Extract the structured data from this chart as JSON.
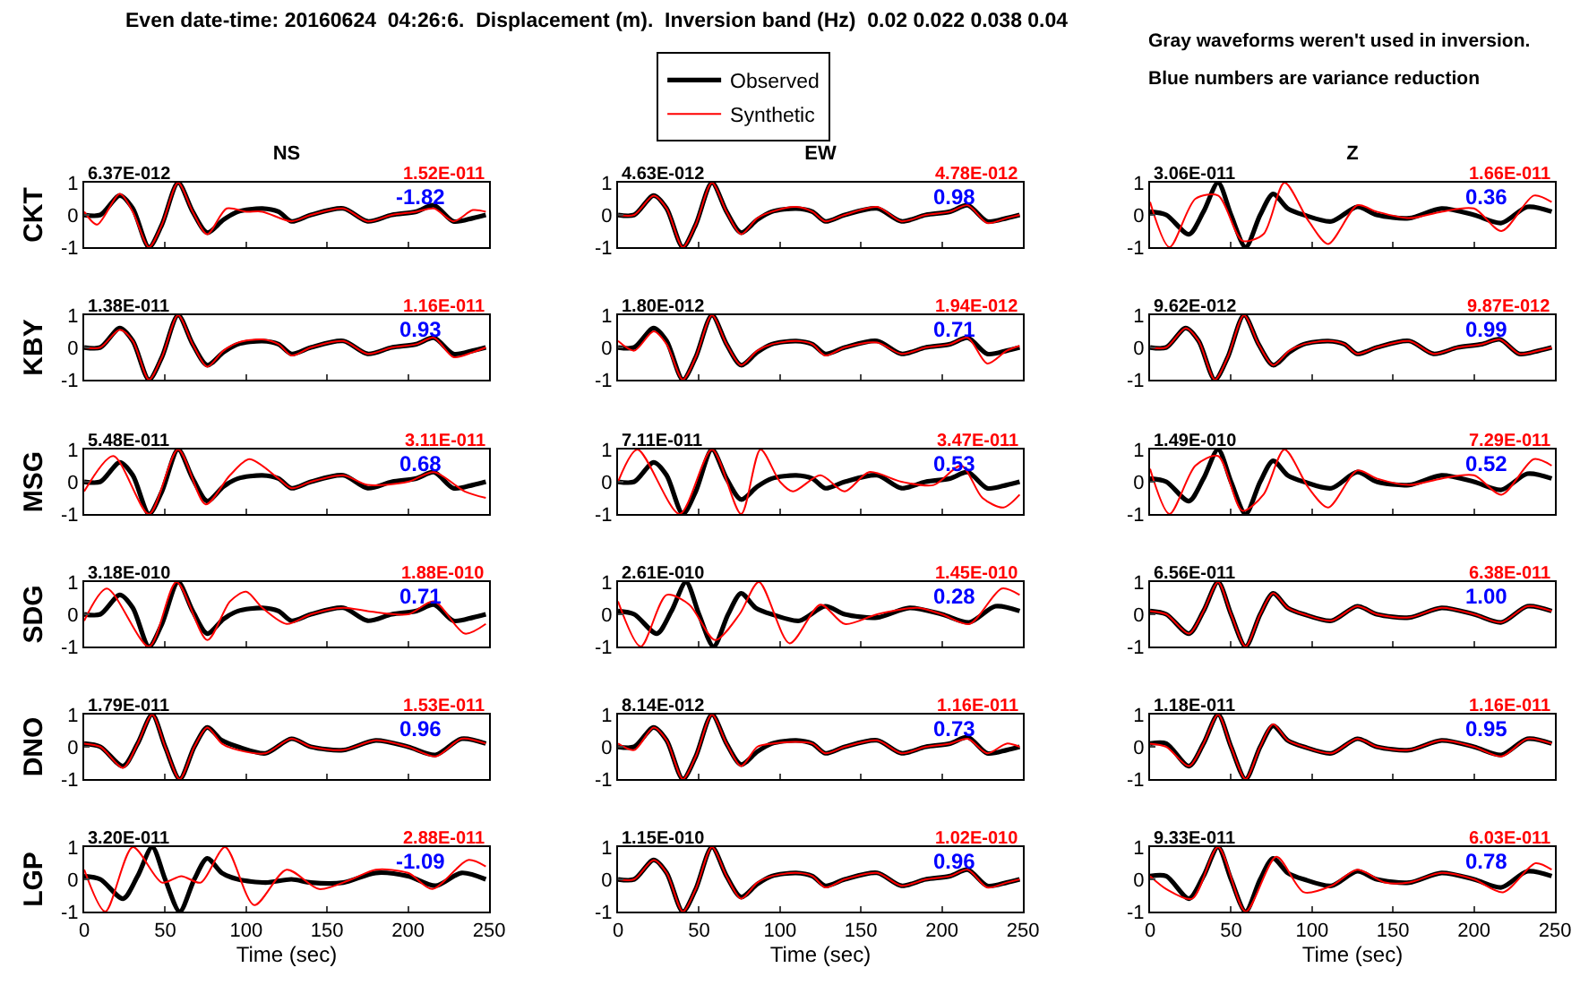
{
  "chart_data": [
    {
      "type": "other",
      "title": "Even date-time: 20160624  04:26:6.  Displacement (m).  Inversion band (Hz)  0.02 0.022 0.038 0.04",
      "annotations": [
        "Gray waveforms weren't used in inversion.",
        "Blue numbers are variance reduction"
      ]
    },
    {
      "type": "line",
      "title": "NS",
      "ylabel": "CKT",
      "xlim": [
        0,
        250
      ],
      "xticks": [
        0,
        50,
        100,
        150,
        200,
        250
      ],
      "ylim": [
        -1,
        1
      ],
      "yticks": [
        -1,
        0,
        1
      ],
      "tick_labels": "y",
      "annotations": [
        "6.37E-012",
        "1.52E-011",
        "-1.82"
      ],
      "series": [
        {
          "color": "#000000",
          "x": [
            0,
            10,
            22,
            30,
            40,
            48,
            58,
            67,
            76,
            86,
            95,
            110,
            120,
            128,
            140,
            160,
            175,
            190,
            205,
            216,
            228,
            240,
            248
          ],
          "values": [
            0,
            0,
            0.6,
            0.2,
            -1,
            -0.3,
            1,
            0.1,
            -0.55,
            -0.15,
            0.1,
            0.2,
            0.1,
            -0.2,
            0,
            0.2,
            -0.2,
            0,
            0.1,
            0.3,
            -0.2,
            -0.1,
            0
          ]
        },
        {
          "color": "#ff0000",
          "x": [
            0,
            8,
            22,
            30,
            40,
            48,
            58,
            67,
            76,
            88,
            100,
            110,
            128,
            140,
            160,
            175,
            190,
            205,
            216,
            228,
            240,
            248
          ],
          "values": [
            0.1,
            -0.3,
            0.65,
            0.1,
            -1,
            -0.3,
            1,
            0.1,
            -0.6,
            0.2,
            0.1,
            0.1,
            -0.2,
            0,
            0.2,
            -0.2,
            0,
            0.1,
            0.2,
            -0.2,
            0.15,
            0.1
          ]
        }
      ]
    },
    {
      "type": "line",
      "title": "EW",
      "legend": "top",
      "xlim": [
        0,
        250
      ],
      "xticks": [
        0,
        50,
        100,
        150,
        200,
        250
      ],
      "ylim": [
        -1,
        1
      ],
      "yticks": [
        -1,
        0,
        1
      ],
      "tick_labels": "y",
      "annotations": [
        "4.63E-012",
        "4.78E-012",
        "0.98"
      ],
      "series": [
        {
          "name": "Observed",
          "color": "#000000",
          "x": [
            0,
            10,
            22,
            30,
            40,
            48,
            58,
            67,
            76,
            86,
            95,
            110,
            120,
            128,
            140,
            160,
            175,
            190,
            205,
            216,
            228,
            240,
            248
          ],
          "values": [
            0,
            0,
            0.6,
            0.2,
            -1,
            -0.3,
            1,
            0.1,
            -0.55,
            -0.15,
            0.1,
            0.2,
            0.1,
            -0.2,
            0,
            0.2,
            -0.2,
            0,
            0.1,
            0.3,
            -0.2,
            -0.1,
            0
          ]
        },
        {
          "name": "Synthetic",
          "color": "#ff0000",
          "x": [
            0,
            10,
            22,
            30,
            40,
            48,
            58,
            67,
            76,
            86,
            95,
            110,
            120,
            128,
            140,
            160,
            175,
            190,
            205,
            216,
            228,
            240,
            248
          ],
          "values": [
            0,
            0,
            0.6,
            0.2,
            -1,
            -0.3,
            1,
            0.1,
            -0.6,
            -0.1,
            0.1,
            0.25,
            0.1,
            -0.2,
            0,
            0.25,
            -0.2,
            0,
            0.1,
            0.3,
            -0.25,
            -0.1,
            0
          ]
        }
      ]
    },
    {
      "type": "line",
      "title": "Z",
      "xlim": [
        0,
        250
      ],
      "xticks": [
        0,
        50,
        100,
        150,
        200,
        250
      ],
      "ylim": [
        -1,
        1
      ],
      "yticks": [
        -1,
        0,
        1
      ],
      "tick_labels": "y",
      "annotations": [
        "3.06E-011",
        "1.66E-011",
        "0.36"
      ],
      "series": [
        {
          "color": "#000000",
          "x": [
            0,
            10,
            24,
            33,
            42,
            50,
            59,
            68,
            76,
            85,
            95,
            112,
            128,
            140,
            160,
            180,
            200,
            217,
            233,
            248
          ],
          "values": [
            0.1,
            0,
            -0.6,
            0.1,
            1,
            0,
            -1,
            0,
            0.65,
            0.2,
            0,
            -0.2,
            0.25,
            0,
            -0.1,
            0.2,
            0,
            -0.25,
            0.25,
            0.1
          ]
        },
        {
          "color": "#ff0000",
          "x": [
            0,
            12,
            28,
            42,
            57,
            70,
            83,
            98,
            110,
            128,
            140,
            160,
            180,
            200,
            217,
            237,
            248
          ],
          "values": [
            0.4,
            -1,
            0.5,
            0.6,
            -0.8,
            -0.6,
            1,
            -0.2,
            -0.9,
            0.3,
            0.1,
            -0.1,
            0.1,
            0.2,
            -0.5,
            0.6,
            0.4
          ]
        }
      ]
    },
    {
      "type": "line",
      "ylabel": "KBY",
      "xlim": [
        0,
        250
      ],
      "xticks": [
        0,
        50,
        100,
        150,
        200,
        250
      ],
      "ylim": [
        -1,
        1
      ],
      "yticks": [
        -1,
        0,
        1
      ],
      "tick_labels": "y",
      "annotations": [
        "1.38E-011",
        "1.16E-011",
        "0.93"
      ],
      "series": [
        {
          "color": "#000000",
          "x": [
            0,
            10,
            22,
            30,
            40,
            48,
            58,
            67,
            76,
            86,
            95,
            110,
            120,
            128,
            140,
            160,
            175,
            190,
            205,
            216,
            228,
            240,
            248
          ],
          "values": [
            0,
            0,
            0.6,
            0.2,
            -1,
            -0.3,
            1,
            0.1,
            -0.55,
            -0.15,
            0.1,
            0.2,
            0.1,
            -0.2,
            0,
            0.2,
            -0.2,
            0,
            0.1,
            0.3,
            -0.2,
            -0.1,
            0
          ]
        },
        {
          "color": "#ff0000",
          "x": [
            0,
            10,
            22,
            30,
            40,
            48,
            58,
            67,
            76,
            86,
            95,
            110,
            120,
            128,
            140,
            160,
            175,
            190,
            205,
            216,
            228,
            240,
            248
          ],
          "values": [
            0,
            0,
            0.55,
            0.2,
            -1,
            -0.3,
            1,
            0.1,
            -0.6,
            -0.1,
            0.15,
            0.25,
            0.1,
            -0.25,
            0,
            0.2,
            -0.2,
            0,
            0.1,
            0.3,
            -0.3,
            -0.15,
            0
          ]
        }
      ]
    },
    {
      "type": "line",
      "xlim": [
        0,
        250
      ],
      "xticks": [
        0,
        50,
        100,
        150,
        200,
        250
      ],
      "ylim": [
        -1,
        1
      ],
      "yticks": [
        -1,
        0,
        1
      ],
      "tick_labels": "y",
      "annotations": [
        "1.80E-012",
        "1.94E-012",
        "0.71"
      ],
      "series": [
        {
          "color": "#000000",
          "x": [
            0,
            10,
            22,
            30,
            40,
            48,
            58,
            67,
            76,
            86,
            95,
            110,
            120,
            128,
            140,
            160,
            175,
            190,
            205,
            216,
            228,
            240,
            248
          ],
          "values": [
            0,
            0,
            0.6,
            0.2,
            -1,
            -0.3,
            1,
            0.1,
            -0.55,
            -0.15,
            0.1,
            0.2,
            0.1,
            -0.2,
            0,
            0.2,
            -0.2,
            0,
            0.1,
            0.3,
            -0.2,
            -0.1,
            0
          ]
        },
        {
          "color": "#ff0000",
          "x": [
            0,
            10,
            22,
            30,
            40,
            48,
            58,
            67,
            76,
            86,
            95,
            110,
            120,
            128,
            140,
            160,
            175,
            190,
            205,
            216,
            228,
            240,
            248
          ],
          "values": [
            0.2,
            -0.1,
            0.5,
            0.1,
            -1,
            -0.3,
            1,
            0.1,
            -0.55,
            -0.1,
            0.1,
            0.2,
            0.1,
            -0.25,
            0,
            0.15,
            -0.2,
            0,
            0.1,
            0.3,
            -0.5,
            -0.1,
            0.05
          ]
        }
      ]
    },
    {
      "type": "line",
      "xlim": [
        0,
        250
      ],
      "xticks": [
        0,
        50,
        100,
        150,
        200,
        250
      ],
      "ylim": [
        -1,
        1
      ],
      "yticks": [
        -1,
        0,
        1
      ],
      "tick_labels": "y",
      "annotations": [
        "9.62E-012",
        "9.87E-012",
        "0.99"
      ],
      "series": [
        {
          "color": "#000000",
          "x": [
            0,
            10,
            22,
            30,
            40,
            48,
            58,
            67,
            76,
            86,
            95,
            110,
            120,
            128,
            140,
            160,
            175,
            190,
            205,
            216,
            228,
            240,
            248
          ],
          "values": [
            0,
            0,
            0.6,
            0.2,
            -1,
            -0.3,
            1,
            0.1,
            -0.55,
            -0.15,
            0.1,
            0.2,
            0.1,
            -0.2,
            0,
            0.2,
            -0.2,
            0,
            0.1,
            0.25,
            -0.2,
            -0.1,
            0
          ]
        },
        {
          "color": "#ff0000",
          "x": [
            0,
            10,
            22,
            30,
            40,
            48,
            58,
            67,
            76,
            86,
            95,
            110,
            120,
            128,
            140,
            160,
            175,
            190,
            205,
            216,
            228,
            240,
            248
          ],
          "values": [
            0,
            0,
            0.6,
            0.2,
            -1,
            -0.3,
            1,
            0.1,
            -0.55,
            -0.1,
            0.1,
            0.2,
            0.1,
            -0.2,
            0,
            0.2,
            -0.2,
            0,
            0.1,
            0.25,
            -0.2,
            -0.1,
            0
          ]
        }
      ]
    },
    {
      "type": "line",
      "ylabel": "MSG",
      "xlim": [
        0,
        250
      ],
      "xticks": [
        0,
        50,
        100,
        150,
        200,
        250
      ],
      "ylim": [
        -1,
        1
      ],
      "yticks": [
        -1,
        0,
        1
      ],
      "tick_labels": "y",
      "annotations": [
        "5.48E-011",
        "3.11E-011",
        "0.68"
      ],
      "series": [
        {
          "color": "#000000",
          "x": [
            0,
            10,
            22,
            30,
            40,
            48,
            58,
            67,
            76,
            86,
            95,
            110,
            120,
            128,
            140,
            160,
            175,
            190,
            205,
            216,
            228,
            240,
            248
          ],
          "values": [
            0,
            0,
            0.6,
            0.2,
            -1,
            -0.3,
            1,
            0.1,
            -0.6,
            -0.15,
            0.1,
            0.2,
            0.1,
            -0.2,
            0,
            0.2,
            -0.2,
            0,
            0.1,
            0.3,
            -0.2,
            -0.1,
            0
          ]
        },
        {
          "color": "#ff0000",
          "x": [
            0,
            18,
            40,
            58,
            75,
            90,
            102,
            120,
            128,
            140,
            160,
            175,
            200,
            216,
            235,
            248
          ],
          "values": [
            -0.3,
            0.8,
            -1,
            1,
            -0.7,
            0.2,
            0.7,
            0.1,
            -0.2,
            0,
            0.2,
            -0.1,
            0,
            0.3,
            -0.3,
            -0.5
          ]
        }
      ]
    },
    {
      "type": "line",
      "xlim": [
        0,
        250
      ],
      "xticks": [
        0,
        50,
        100,
        150,
        200,
        250
      ],
      "ylim": [
        -1,
        1
      ],
      "yticks": [
        -1,
        0,
        1
      ],
      "tick_labels": "y",
      "annotations": [
        "7.11E-011",
        "3.47E-011",
        "0.53"
      ],
      "series": [
        {
          "color": "#000000",
          "x": [
            0,
            10,
            22,
            30,
            40,
            48,
            58,
            67,
            76,
            86,
            95,
            110,
            120,
            128,
            140,
            160,
            175,
            190,
            205,
            216,
            228,
            240,
            248
          ],
          "values": [
            0,
            0,
            0.6,
            0.2,
            -1,
            -0.3,
            1,
            0.1,
            -0.55,
            -0.15,
            0.1,
            0.2,
            0.1,
            -0.2,
            0,
            0.2,
            -0.2,
            0,
            0.1,
            0.3,
            -0.2,
            -0.1,
            0
          ]
        },
        {
          "color": "#ff0000",
          "x": [
            0,
            12,
            38,
            58,
            76,
            88,
            100,
            108,
            125,
            140,
            155,
            175,
            195,
            212,
            225,
            238,
            248
          ],
          "values": [
            0,
            1,
            -1,
            1,
            -1,
            1,
            0,
            -0.3,
            0.2,
            -0.3,
            0.3,
            0,
            -0.1,
            0.5,
            -0.5,
            -0.8,
            -0.4
          ]
        }
      ]
    },
    {
      "type": "line",
      "xlim": [
        0,
        250
      ],
      "xticks": [
        0,
        50,
        100,
        150,
        200,
        250
      ],
      "ylim": [
        -1,
        1
      ],
      "yticks": [
        -1,
        0,
        1
      ],
      "tick_labels": "y",
      "annotations": [
        "1.49E-010",
        "7.29E-011",
        "0.52"
      ],
      "series": [
        {
          "color": "#000000",
          "x": [
            0,
            10,
            24,
            33,
            42,
            50,
            59,
            68,
            76,
            85,
            95,
            112,
            128,
            140,
            160,
            180,
            200,
            217,
            233,
            248
          ],
          "values": [
            0.1,
            0,
            -0.6,
            0.1,
            1,
            0,
            -1,
            0,
            0.65,
            0.2,
            0,
            -0.2,
            0.3,
            0,
            -0.1,
            0.2,
            0,
            -0.25,
            0.25,
            0.1
          ]
        },
        {
          "color": "#ff0000",
          "x": [
            0,
            12,
            28,
            42,
            57,
            70,
            83,
            98,
            110,
            128,
            140,
            160,
            180,
            200,
            217,
            237,
            248
          ],
          "values": [
            0.4,
            -1,
            0.5,
            0.8,
            -0.9,
            -0.4,
            1,
            -0.2,
            -0.8,
            0.35,
            0.1,
            -0.1,
            0.1,
            0.2,
            -0.4,
            0.7,
            0.5
          ]
        }
      ]
    },
    {
      "type": "line",
      "ylabel": "SDG",
      "xlim": [
        0,
        250
      ],
      "xticks": [
        0,
        50,
        100,
        150,
        200,
        250
      ],
      "ylim": [
        -1,
        1
      ],
      "yticks": [
        -1,
        0,
        1
      ],
      "tick_labels": "y",
      "annotations": [
        "3.18E-010",
        "1.88E-010",
        "0.71"
      ],
      "series": [
        {
          "color": "#000000",
          "x": [
            0,
            10,
            22,
            30,
            40,
            48,
            58,
            67,
            76,
            86,
            95,
            110,
            120,
            128,
            140,
            160,
            175,
            190,
            205,
            216,
            228,
            240,
            248
          ],
          "values": [
            0,
            0,
            0.6,
            0.2,
            -1,
            -0.3,
            1,
            0.1,
            -0.6,
            -0.15,
            0.1,
            0.2,
            0.1,
            -0.2,
            0,
            0.2,
            -0.2,
            0,
            0.1,
            0.3,
            -0.2,
            -0.1,
            0
          ]
        },
        {
          "color": "#ff0000",
          "x": [
            0,
            14,
            40,
            57,
            76,
            90,
            100,
            110,
            125,
            140,
            160,
            175,
            200,
            216,
            235,
            248
          ],
          "values": [
            -0.2,
            0.8,
            -1,
            1,
            -0.8,
            0.4,
            0.7,
            0.2,
            -0.3,
            0,
            0.2,
            0.1,
            0,
            0.4,
            -0.6,
            -0.3
          ]
        }
      ]
    },
    {
      "type": "line",
      "xlim": [
        0,
        250
      ],
      "xticks": [
        0,
        50,
        100,
        150,
        200,
        250
      ],
      "ylim": [
        -1,
        1
      ],
      "yticks": [
        -1,
        0,
        1
      ],
      "tick_labels": "y",
      "annotations": [
        "2.61E-010",
        "1.45E-010",
        "0.28"
      ],
      "series": [
        {
          "color": "#000000",
          "x": [
            0,
            10,
            24,
            33,
            42,
            50,
            59,
            68,
            76,
            85,
            95,
            112,
            128,
            140,
            160,
            180,
            200,
            217,
            233,
            248
          ],
          "values": [
            0.1,
            0,
            -0.6,
            0.1,
            1,
            0,
            -1,
            0,
            0.65,
            0.2,
            0,
            -0.2,
            0.25,
            0,
            -0.1,
            0.2,
            0,
            -0.25,
            0.25,
            0.1
          ]
        },
        {
          "color": "#ff0000",
          "x": [
            0,
            14,
            30,
            44,
            60,
            75,
            87,
            106,
            125,
            140,
            160,
            185,
            200,
            217,
            237,
            248
          ],
          "values": [
            0.4,
            -1,
            0.6,
            0.3,
            -0.8,
            0,
            1,
            -0.9,
            0.3,
            -0.3,
            0,
            0.2,
            0,
            -0.3,
            0.8,
            0.6
          ]
        }
      ]
    },
    {
      "type": "line",
      "xlim": [
        0,
        250
      ],
      "xticks": [
        0,
        50,
        100,
        150,
        200,
        250
      ],
      "ylim": [
        -1,
        1
      ],
      "yticks": [
        -1,
        0,
        1
      ],
      "tick_labels": "y",
      "annotations": [
        "6.56E-011",
        "6.38E-011",
        "1.00"
      ],
      "series": [
        {
          "color": "#000000",
          "x": [
            0,
            10,
            24,
            33,
            42,
            50,
            59,
            68,
            76,
            85,
            95,
            112,
            128,
            140,
            160,
            180,
            200,
            217,
            233,
            248
          ],
          "values": [
            0.1,
            0,
            -0.6,
            0.1,
            1,
            0,
            -1,
            0,
            0.65,
            0.2,
            0,
            -0.2,
            0.25,
            0,
            -0.1,
            0.2,
            0,
            -0.25,
            0.25,
            0.1
          ]
        },
        {
          "color": "#ff0000",
          "x": [
            0,
            10,
            24,
            33,
            42,
            50,
            59,
            68,
            76,
            85,
            95,
            112,
            128,
            140,
            160,
            180,
            200,
            217,
            233,
            248
          ],
          "values": [
            0.1,
            0,
            -0.6,
            0.1,
            1,
            0,
            -1,
            0,
            0.65,
            0.2,
            0,
            -0.2,
            0.25,
            0,
            -0.1,
            0.2,
            0,
            -0.25,
            0.25,
            0.1
          ]
        }
      ]
    },
    {
      "type": "line",
      "ylabel": "DNO",
      "xlim": [
        0,
        250
      ],
      "xticks": [
        0,
        50,
        100,
        150,
        200,
        250
      ],
      "ylim": [
        -1,
        1
      ],
      "yticks": [
        -1,
        0,
        1
      ],
      "tick_labels": "y",
      "annotations": [
        "1.79E-011",
        "1.53E-011",
        "0.96"
      ],
      "series": [
        {
          "color": "#000000",
          "x": [
            0,
            10,
            24,
            33,
            42,
            50,
            59,
            68,
            76,
            85,
            95,
            112,
            128,
            140,
            160,
            180,
            200,
            217,
            233,
            248
          ],
          "values": [
            0.1,
            0,
            -0.6,
            0.1,
            1,
            0,
            -1,
            0,
            0.6,
            0.2,
            0,
            -0.2,
            0.25,
            0,
            -0.1,
            0.2,
            0,
            -0.25,
            0.25,
            0.1
          ]
        },
        {
          "color": "#ff0000",
          "x": [
            0,
            10,
            24,
            33,
            42,
            50,
            59,
            68,
            76,
            85,
            95,
            112,
            128,
            140,
            160,
            180,
            200,
            217,
            233,
            248
          ],
          "values": [
            0.1,
            0,
            -0.65,
            0.1,
            1,
            0,
            -1,
            0,
            0.6,
            0.1,
            -0.1,
            -0.2,
            0.25,
            0,
            -0.1,
            0.2,
            0,
            -0.3,
            0.25,
            0.1
          ]
        }
      ]
    },
    {
      "type": "line",
      "xlim": [
        0,
        250
      ],
      "xticks": [
        0,
        50,
        100,
        150,
        200,
        250
      ],
      "ylim": [
        -1,
        1
      ],
      "yticks": [
        -1,
        0,
        1
      ],
      "tick_labels": "y",
      "annotations": [
        "8.14E-012",
        "1.16E-011",
        "0.73"
      ],
      "series": [
        {
          "color": "#000000",
          "x": [
            0,
            10,
            22,
            30,
            40,
            48,
            58,
            67,
            76,
            86,
            95,
            110,
            120,
            128,
            140,
            160,
            175,
            190,
            205,
            216,
            228,
            240,
            248
          ],
          "values": [
            0,
            0,
            0.6,
            0.2,
            -1,
            -0.3,
            1,
            0.1,
            -0.55,
            -0.15,
            0.1,
            0.2,
            0.1,
            -0.2,
            0,
            0.2,
            -0.2,
            0,
            0.1,
            0.3,
            -0.2,
            -0.1,
            0
          ]
        },
        {
          "color": "#ff0000",
          "x": [
            0,
            10,
            22,
            30,
            40,
            48,
            58,
            67,
            76,
            86,
            95,
            110,
            120,
            128,
            140,
            160,
            175,
            190,
            205,
            216,
            228,
            240,
            248
          ],
          "values": [
            0.1,
            -0.1,
            0.6,
            0.2,
            -1,
            -0.3,
            1,
            0.1,
            -0.6,
            0,
            0.1,
            0.15,
            0.1,
            -0.2,
            0,
            0.2,
            -0.2,
            0,
            0.1,
            0.25,
            -0.2,
            0.1,
            0
          ]
        }
      ]
    },
    {
      "type": "line",
      "xlim": [
        0,
        250
      ],
      "xticks": [
        0,
        50,
        100,
        150,
        200,
        250
      ],
      "ylim": [
        -1,
        1
      ],
      "yticks": [
        -1,
        0,
        1
      ],
      "tick_labels": "y",
      "annotations": [
        "1.18E-011",
        "1.16E-011",
        "0.95"
      ],
      "series": [
        {
          "color": "#000000",
          "x": [
            0,
            10,
            24,
            33,
            42,
            50,
            59,
            68,
            76,
            85,
            95,
            112,
            128,
            140,
            160,
            180,
            200,
            217,
            233,
            248
          ],
          "values": [
            0.1,
            0.1,
            -0.6,
            0.1,
            1,
            0,
            -1,
            0,
            0.65,
            0.2,
            0,
            -0.2,
            0.25,
            0,
            -0.1,
            0.2,
            0,
            -0.25,
            0.25,
            0.1
          ]
        },
        {
          "color": "#ff0000",
          "x": [
            0,
            10,
            24,
            33,
            42,
            50,
            59,
            68,
            76,
            85,
            95,
            112,
            128,
            140,
            160,
            180,
            200,
            217,
            233,
            248
          ],
          "values": [
            0.1,
            0,
            -0.6,
            0.1,
            1,
            0,
            -1,
            0,
            0.7,
            0.2,
            0,
            -0.2,
            0.25,
            0,
            -0.1,
            0.2,
            0,
            -0.3,
            0.25,
            0.1
          ]
        }
      ]
    },
    {
      "type": "line",
      "ylabel": "LGP",
      "xlabel": "Time (sec)",
      "xlim": [
        0,
        250
      ],
      "xticks": [
        0,
        50,
        100,
        150,
        200,
        250
      ],
      "ylim": [
        -1,
        1
      ],
      "yticks": [
        -1,
        0,
        1
      ],
      "annotations": [
        "3.20E-011",
        "2.88E-011",
        "-1.09"
      ],
      "series": [
        {
          "color": "#000000",
          "x": [
            0,
            10,
            24,
            33,
            42,
            50,
            59,
            68,
            76,
            85,
            95,
            112,
            128,
            140,
            160,
            180,
            200,
            217,
            233,
            248
          ],
          "values": [
            0.1,
            0,
            -0.6,
            0.1,
            1,
            0,
            -1,
            0,
            0.65,
            0.2,
            0,
            -0.1,
            0,
            -0.1,
            -0.1,
            0.2,
            0.1,
            -0.2,
            0.2,
            0
          ]
        },
        {
          "color": "#ff0000",
          "x": [
            0,
            13,
            30,
            48,
            60,
            72,
            87,
            105,
            125,
            145,
            165,
            180,
            200,
            215,
            237,
            248
          ],
          "values": [
            0.3,
            -1,
            1,
            -0.1,
            0.1,
            -0.1,
            1,
            -0.8,
            0.3,
            -0.3,
            0,
            0.3,
            0.2,
            -0.3,
            0.6,
            0.4
          ]
        }
      ]
    },
    {
      "type": "line",
      "xlabel": "Time (sec)",
      "xlim": [
        0,
        250
      ],
      "xticks": [
        0,
        50,
        100,
        150,
        200,
        250
      ],
      "ylim": [
        -1,
        1
      ],
      "yticks": [
        -1,
        0,
        1
      ],
      "annotations": [
        "1.15E-010",
        "1.02E-010",
        "0.96"
      ],
      "series": [
        {
          "color": "#000000",
          "x": [
            0,
            10,
            22,
            30,
            40,
            48,
            58,
            67,
            76,
            86,
            95,
            110,
            120,
            128,
            140,
            160,
            175,
            190,
            205,
            216,
            228,
            240,
            248
          ],
          "values": [
            0,
            0,
            0.6,
            0.2,
            -1,
            -0.3,
            1,
            0.1,
            -0.55,
            -0.15,
            0.1,
            0.2,
            0.1,
            -0.2,
            0,
            0.2,
            -0.2,
            0,
            0.1,
            0.3,
            -0.2,
            -0.1,
            0
          ]
        },
        {
          "color": "#ff0000",
          "x": [
            0,
            10,
            22,
            30,
            40,
            48,
            58,
            67,
            76,
            86,
            95,
            110,
            120,
            128,
            140,
            160,
            175,
            190,
            205,
            216,
            228,
            240,
            248
          ],
          "values": [
            0,
            0,
            0.6,
            0.2,
            -1,
            -0.3,
            1,
            0.1,
            -0.6,
            -0.1,
            0.1,
            0.2,
            0.1,
            -0.25,
            0,
            0.2,
            -0.2,
            0,
            0.1,
            0.3,
            -0.25,
            -0.1,
            0
          ]
        }
      ]
    },
    {
      "type": "line",
      "xlabel": "Time (sec)",
      "xlim": [
        0,
        250
      ],
      "xticks": [
        0,
        50,
        100,
        150,
        200,
        250
      ],
      "ylim": [
        -1,
        1
      ],
      "yticks": [
        -1,
        0,
        1
      ],
      "annotations": [
        "9.33E-011",
        "6.03E-011",
        "0.78"
      ],
      "series": [
        {
          "color": "#000000",
          "x": [
            0,
            10,
            24,
            33,
            42,
            50,
            59,
            68,
            76,
            85,
            95,
            112,
            128,
            140,
            160,
            180,
            200,
            217,
            233,
            248
          ],
          "values": [
            0.1,
            0.1,
            -0.6,
            0.1,
            1,
            0,
            -1,
            0,
            0.65,
            0.2,
            0,
            -0.2,
            0.25,
            0,
            -0.1,
            0.2,
            0,
            -0.25,
            0.25,
            0.1
          ]
        },
        {
          "color": "#ff0000",
          "x": [
            0,
            10,
            26,
            42,
            59,
            78,
            95,
            112,
            128,
            145,
            160,
            180,
            200,
            218,
            238,
            248
          ],
          "values": [
            0.1,
            -0.3,
            -0.6,
            1,
            -1,
            0.7,
            -0.4,
            -0.2,
            0.3,
            -0.1,
            -0.1,
            0.2,
            0,
            -0.4,
            0.5,
            0.3
          ]
        }
      ]
    }
  ]
}
